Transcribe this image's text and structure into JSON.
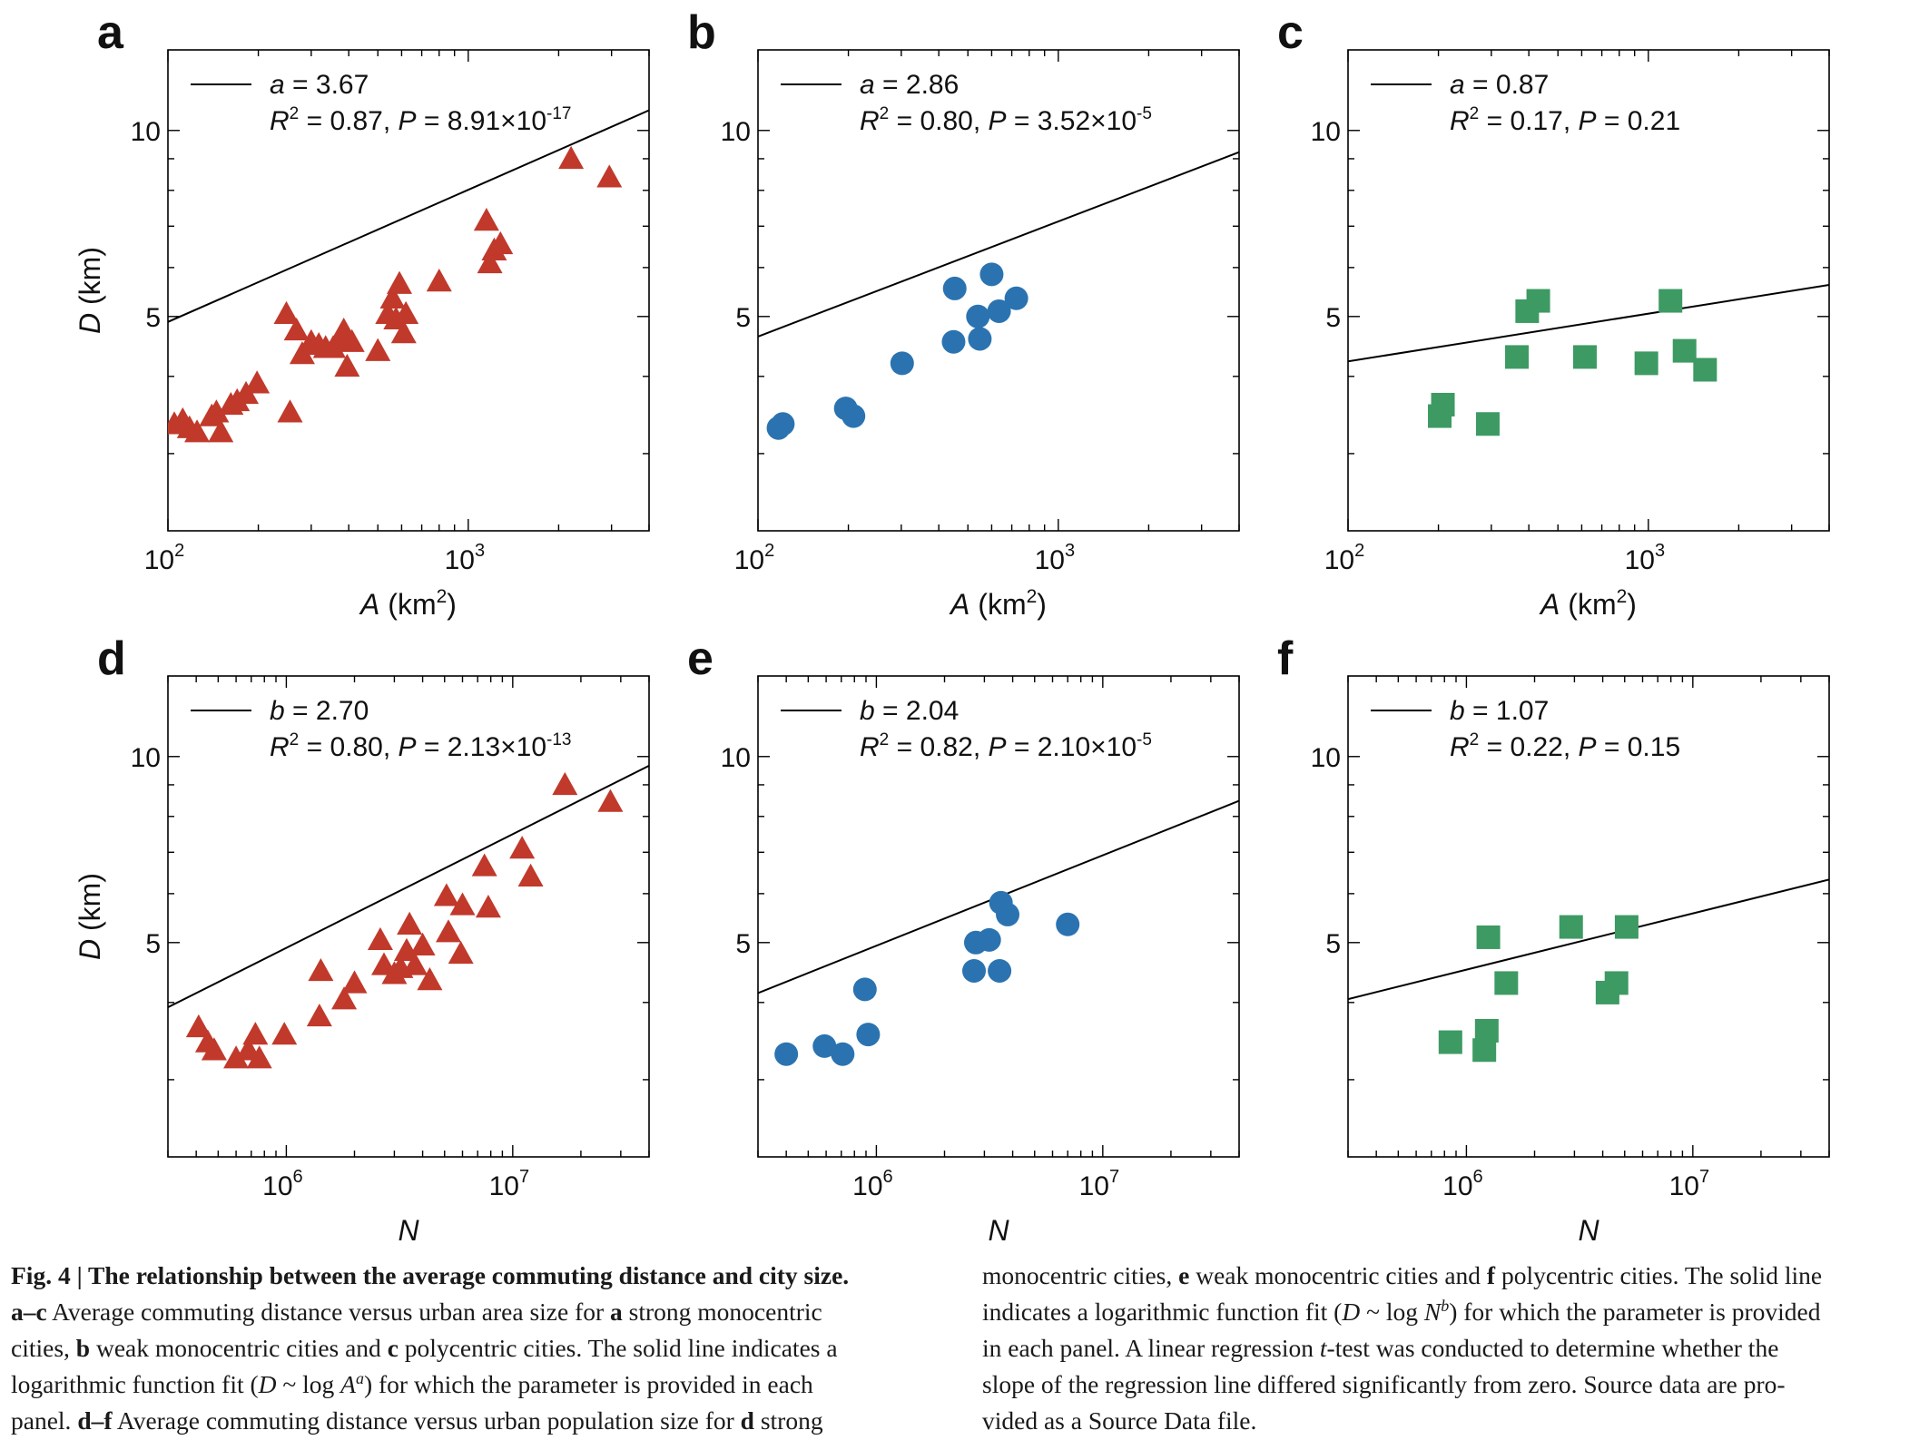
{
  "figure": {
    "x_tick_labels_area": [
      {
        "base": "10",
        "exp": "2"
      },
      {
        "base": "10",
        "exp": "3"
      }
    ],
    "x_tick_labels_population": [
      {
        "base": "10",
        "exp": "6"
      },
      {
        "base": "10",
        "exp": "7"
      }
    ],
    "y_tick_labels": [
      "5",
      "10"
    ]
  },
  "chart_data": [
    {
      "type": "scatter",
      "panel_label": "a",
      "marker": "triangle",
      "color": "#c0392b",
      "xlabel": "A (km²)",
      "ylabel": "D (km)",
      "x_scale": "log",
      "y_scale": "log",
      "xlim": [
        100,
        4000
      ],
      "ylim": [
        2.25,
        13.5
      ],
      "legend": {
        "param_name": "a",
        "param_value": "3.67",
        "r2": "0.87",
        "p_mant": "8.91",
        "p_exp": "-17"
      },
      "fit": {
        "a": 3.67,
        "k": 8.57
      },
      "points": [
        [
          105,
          3.35
        ],
        [
          112,
          3.4
        ],
        [
          118,
          3.3
        ],
        [
          125,
          3.25
        ],
        [
          140,
          3.45
        ],
        [
          145,
          3.5
        ],
        [
          150,
          3.25
        ],
        [
          162,
          3.6
        ],
        [
          170,
          3.65
        ],
        [
          182,
          3.75
        ],
        [
          198,
          3.9
        ],
        [
          248,
          5.05
        ],
        [
          255,
          3.5
        ],
        [
          268,
          4.75
        ],
        [
          280,
          4.35
        ],
        [
          300,
          4.55
        ],
        [
          318,
          4.5
        ],
        [
          335,
          4.45
        ],
        [
          355,
          4.45
        ],
        [
          372,
          4.6
        ],
        [
          385,
          4.75
        ],
        [
          395,
          4.15
        ],
        [
          410,
          4.55
        ],
        [
          500,
          4.4
        ],
        [
          540,
          5.05
        ],
        [
          560,
          5.35
        ],
        [
          575,
          4.95
        ],
        [
          590,
          5.65
        ],
        [
          610,
          4.7
        ],
        [
          620,
          5.05
        ],
        [
          800,
          5.7
        ],
        [
          1150,
          7.15
        ],
        [
          1180,
          6.1
        ],
        [
          1220,
          6.4
        ],
        [
          1280,
          6.55
        ],
        [
          2200,
          9.0
        ],
        [
          2950,
          8.4
        ]
      ]
    },
    {
      "type": "scatter",
      "panel_label": "b",
      "marker": "circle",
      "color": "#2b73b0",
      "xlabel": "A (km²)",
      "ylabel": "",
      "x_scale": "log",
      "y_scale": "log",
      "xlim": [
        100,
        4000
      ],
      "ylim": [
        2.25,
        13.5
      ],
      "legend": {
        "param_name": "a",
        "param_value": "2.86",
        "r2": "0.80",
        "p_mant": "3.52",
        "p_exp": "-5"
      },
      "fit": {
        "a": 2.86,
        "k": 7.5
      },
      "points": [
        [
          117,
          3.3
        ],
        [
          121,
          3.35
        ],
        [
          196,
          3.55
        ],
        [
          208,
          3.45
        ],
        [
          302,
          4.2
        ],
        [
          448,
          4.55
        ],
        [
          452,
          5.55
        ],
        [
          540,
          5.0
        ],
        [
          548,
          4.6
        ],
        [
          600,
          5.85
        ],
        [
          635,
          5.1
        ],
        [
          725,
          5.35
        ]
      ]
    },
    {
      "type": "scatter",
      "panel_label": "c",
      "marker": "square",
      "color": "#3d9a63",
      "xlabel": "A (km²)",
      "ylabel": "",
      "x_scale": "log",
      "y_scale": "log",
      "xlim": [
        100,
        4000
      ],
      "ylim": [
        2.25,
        13.5
      ],
      "legend": {
        "param_name": "a",
        "param_value": "0.87",
        "r2": "0.17",
        "p_mant": "",
        "p_exp": "",
        "p_plain": "0.21"
      },
      "fit": {
        "a": 0.87,
        "k": 5.1
      },
      "points": [
        [
          202,
          3.45
        ],
        [
          207,
          3.6
        ],
        [
          292,
          3.35
        ],
        [
          365,
          4.3
        ],
        [
          395,
          5.1
        ],
        [
          430,
          5.3
        ],
        [
          615,
          4.3
        ],
        [
          985,
          4.2
        ],
        [
          1185,
          5.3
        ],
        [
          1320,
          4.4
        ],
        [
          1545,
          4.1
        ]
      ]
    },
    {
      "type": "scatter",
      "panel_label": "d",
      "marker": "triangle",
      "color": "#c0392b",
      "xlabel": "N",
      "ylabel": "D (km)",
      "x_scale": "log",
      "y_scale": "log",
      "xlim": [
        300000,
        40000000
      ],
      "ylim": [
        2.25,
        13.5
      ],
      "legend": {
        "param_name": "b",
        "param_value": "2.70",
        "r2": "0.80",
        "p_mant": "2.13",
        "p_exp": "-13"
      },
      "fit": {
        "a": 2.7,
        "k": 8.04
      },
      "points": [
        [
          410000,
          3.65
        ],
        [
          450000,
          3.45
        ],
        [
          480000,
          3.35
        ],
        [
          600000,
          3.25
        ],
        [
          680000,
          3.35
        ],
        [
          730000,
          3.55
        ],
        [
          760000,
          3.25
        ],
        [
          980000,
          3.55
        ],
        [
          1400000,
          3.8
        ],
        [
          1420000,
          4.5
        ],
        [
          1800000,
          4.05
        ],
        [
          2000000,
          4.3
        ],
        [
          2600000,
          5.05
        ],
        [
          2700000,
          4.6
        ],
        [
          3000000,
          4.45
        ],
        [
          3200000,
          4.55
        ],
        [
          3400000,
          4.85
        ],
        [
          3500000,
          5.35
        ],
        [
          3700000,
          4.6
        ],
        [
          4000000,
          4.95
        ],
        [
          4300000,
          4.35
        ],
        [
          5100000,
          5.95
        ],
        [
          5200000,
          5.2
        ],
        [
          5900000,
          4.8
        ],
        [
          6000000,
          5.75
        ],
        [
          7500000,
          6.65
        ],
        [
          7800000,
          5.7
        ],
        [
          11000000,
          7.1
        ],
        [
          12000000,
          6.4
        ],
        [
          17000000,
          9.0
        ],
        [
          27000000,
          8.45
        ]
      ]
    },
    {
      "type": "scatter",
      "panel_label": "e",
      "marker": "circle",
      "color": "#2b73b0",
      "xlabel": "N",
      "ylabel": "",
      "x_scale": "log",
      "y_scale": "log",
      "xlim": [
        300000,
        40000000
      ],
      "ylim": [
        2.25,
        13.5
      ],
      "legend": {
        "param_name": "b",
        "param_value": "2.04",
        "r2": "0.82",
        "p_mant": "2.10",
        "p_exp": "-5"
      },
      "fit": {
        "a": 2.04,
        "k": 7.25
      },
      "points": [
        [
          400000,
          3.3
        ],
        [
          590000,
          3.4
        ],
        [
          710000,
          3.3
        ],
        [
          890000,
          4.2
        ],
        [
          920000,
          3.55
        ],
        [
          2700000,
          4.5
        ],
        [
          2750000,
          5.0
        ],
        [
          3150000,
          5.05
        ],
        [
          3500000,
          4.5
        ],
        [
          3550000,
          5.8
        ],
        [
          3800000,
          5.55
        ],
        [
          7000000,
          5.35
        ]
      ]
    },
    {
      "type": "scatter",
      "panel_label": "f",
      "marker": "square",
      "color": "#3d9a63",
      "xlabel": "N",
      "ylabel": "",
      "x_scale": "log",
      "y_scale": "log",
      "xlim": [
        300000,
        40000000
      ],
      "ylim": [
        2.25,
        13.5
      ],
      "legend": {
        "param_name": "b",
        "param_value": "1.07",
        "r2": "0.22",
        "p_mant": "",
        "p_exp": "",
        "p_plain": "0.15"
      },
      "fit": {
        "a": 1.07,
        "k": 5.68
      },
      "points": [
        [
          850000,
          3.45
        ],
        [
          1200000,
          3.35
        ],
        [
          1230000,
          3.6
        ],
        [
          1250000,
          5.1
        ],
        [
          1500000,
          4.3
        ],
        [
          2900000,
          5.3
        ],
        [
          4200000,
          4.15
        ],
        [
          4600000,
          4.3
        ],
        [
          5100000,
          5.3
        ]
      ]
    }
  ],
  "caption": {
    "left": [
      [
        {
          "t": "Fig. 4 | The relationship between the average commuting distance and city size.",
          "s": "b"
        }
      ],
      [
        {
          "t": "a–c",
          "s": "b"
        },
        {
          "t": " Average commuting distance versus urban area size for "
        },
        {
          "t": "a",
          "s": "b"
        },
        {
          "t": " strong monocentric"
        }
      ],
      [
        {
          "t": "cities, "
        },
        {
          "t": "b",
          "s": "b"
        },
        {
          "t": " weak monocentric cities and "
        },
        {
          "t": "c",
          "s": "b"
        },
        {
          "t": " polycentric cities. The solid line indicates a"
        }
      ],
      [
        {
          "t": "logarithmic function fit ("
        },
        {
          "t": "D",
          "s": "i"
        },
        {
          "t": " ~ log "
        },
        {
          "t": "A",
          "s": "i"
        },
        {
          "t": "a",
          "s": "si"
        },
        {
          "t": ") for which the parameter is provided in each"
        }
      ],
      [
        {
          "t": "panel. "
        },
        {
          "t": "d–f",
          "s": "b"
        },
        {
          "t": " Average commuting distance versus urban population size for "
        },
        {
          "t": "d",
          "s": "b"
        },
        {
          "t": " strong"
        }
      ]
    ],
    "right": [
      [
        {
          "t": "monocentric cities, "
        },
        {
          "t": "e",
          "s": "b"
        },
        {
          "t": " weak monocentric cities and "
        },
        {
          "t": "f",
          "s": "b"
        },
        {
          "t": " polycentric cities. The solid line"
        }
      ],
      [
        {
          "t": "indicates a logarithmic function fit ("
        },
        {
          "t": "D",
          "s": "i"
        },
        {
          "t": " ~ log "
        },
        {
          "t": "N",
          "s": "i"
        },
        {
          "t": "b",
          "s": "si"
        },
        {
          "t": ") for which the parameter is provided"
        }
      ],
      [
        {
          "t": "in each panel. A linear regression "
        },
        {
          "t": "t",
          "s": "i"
        },
        {
          "t": "-test was conducted to determine whether the"
        }
      ],
      [
        {
          "t": "slope of the regression line differed significantly from zero. Source data are pro-"
        }
      ],
      [
        {
          "t": "vided as a Source Data file."
        }
      ]
    ]
  }
}
